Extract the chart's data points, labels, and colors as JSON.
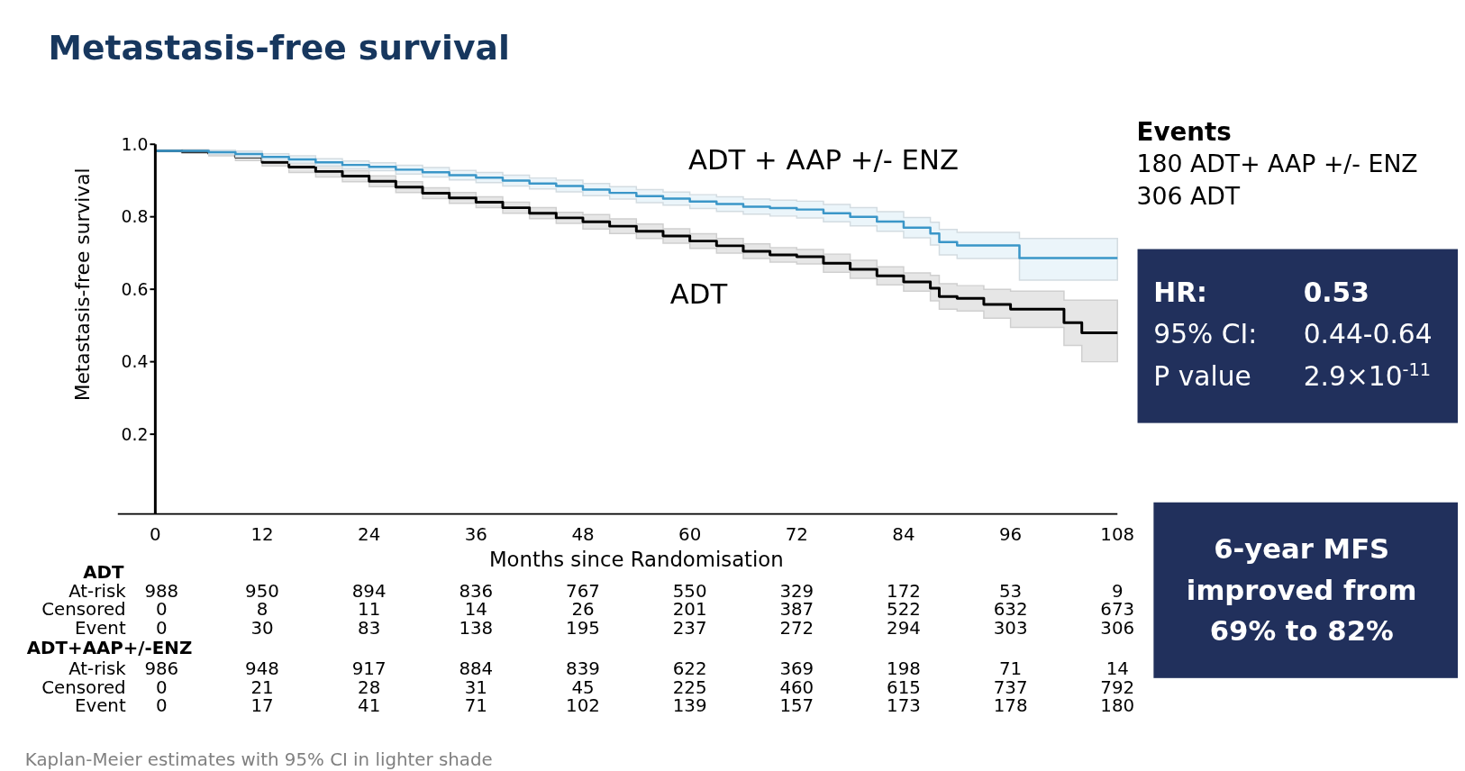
{
  "chart_data": {
    "type": "step",
    "title": "Metastasis-free survival",
    "xlabel": "Months since Randomisation",
    "ylabel": "Metastasis-free survival",
    "xlim": [
      0,
      108
    ],
    "xticks": [
      0,
      12,
      24,
      36,
      48,
      60,
      72,
      84,
      96,
      108
    ],
    "ylim": [
      -0.02,
      1
    ],
    "yticks": [
      0.2,
      0.4,
      0.6,
      0.8,
      {
        "value": 1,
        "label": "1.0"
      }
    ],
    "series": [
      {
        "name": "ADT + AAP +/- ENZ",
        "color": "#3a96c8",
        "x": [
          0,
          6,
          9,
          12,
          15,
          18,
          21,
          24,
          27,
          30,
          33,
          36,
          39,
          42,
          45,
          48,
          51,
          54,
          57,
          60,
          63,
          66,
          69,
          72,
          75,
          78,
          81,
          84,
          87,
          88,
          90,
          97,
          108
        ],
        "values": [
          0.982,
          0.978,
          0.973,
          0.965,
          0.958,
          0.95,
          0.943,
          0.938,
          0.93,
          0.923,
          0.915,
          0.908,
          0.9,
          0.892,
          0.885,
          0.875,
          0.866,
          0.857,
          0.85,
          0.842,
          0.835,
          0.828,
          0.824,
          0.82,
          0.81,
          0.8,
          0.787,
          0.77,
          0.754,
          0.73,
          0.721,
          0.686,
          0.686
        ],
        "lower": [
          0.982,
          0.972,
          0.965,
          0.956,
          0.948,
          0.94,
          0.932,
          0.927,
          0.918,
          0.91,
          0.902,
          0.894,
          0.885,
          0.877,
          0.869,
          0.858,
          0.849,
          0.839,
          0.832,
          0.823,
          0.815,
          0.807,
          0.802,
          0.797,
          0.786,
          0.775,
          0.76,
          0.742,
          0.722,
          0.695,
          0.685,
          0.625,
          0.625
        ],
        "upper": [
          0.982,
          0.984,
          0.981,
          0.974,
          0.968,
          0.96,
          0.954,
          0.949,
          0.942,
          0.936,
          0.928,
          0.922,
          0.915,
          0.907,
          0.901,
          0.892,
          0.883,
          0.875,
          0.868,
          0.861,
          0.855,
          0.849,
          0.846,
          0.843,
          0.834,
          0.825,
          0.814,
          0.798,
          0.785,
          0.765,
          0.757,
          0.74,
          0.74
        ]
      },
      {
        "name": "ADT",
        "color": "#000000",
        "x": [
          0,
          3,
          6,
          9,
          12,
          15,
          18,
          21,
          24,
          27,
          30,
          33,
          36,
          39,
          42,
          45,
          48,
          51,
          54,
          57,
          60,
          63,
          66,
          69,
          72,
          75,
          78,
          81,
          84,
          87,
          88,
          90,
          93,
          96,
          102,
          104,
          108
        ],
        "values": [
          0.982,
          0.98,
          0.975,
          0.965,
          0.95,
          0.937,
          0.925,
          0.912,
          0.898,
          0.882,
          0.865,
          0.852,
          0.84,
          0.825,
          0.81,
          0.797,
          0.786,
          0.774,
          0.76,
          0.747,
          0.733,
          0.72,
          0.705,
          0.695,
          0.69,
          0.672,
          0.655,
          0.637,
          0.62,
          0.603,
          0.58,
          0.575,
          0.558,
          0.545,
          0.508,
          0.48,
          0.48
        ],
        "lower": [
          0.982,
          0.975,
          0.968,
          0.955,
          0.94,
          0.922,
          0.91,
          0.897,
          0.883,
          0.867,
          0.85,
          0.837,
          0.825,
          0.81,
          0.795,
          0.782,
          0.766,
          0.754,
          0.74,
          0.727,
          0.713,
          0.7,
          0.685,
          0.675,
          0.67,
          0.647,
          0.63,
          0.612,
          0.595,
          0.568,
          0.545,
          0.54,
          0.52,
          0.495,
          0.445,
          0.4,
          0.4
        ],
        "upper": [
          0.982,
          0.985,
          0.982,
          0.975,
          0.96,
          0.952,
          0.94,
          0.927,
          0.913,
          0.897,
          0.88,
          0.867,
          0.855,
          0.84,
          0.825,
          0.812,
          0.806,
          0.794,
          0.78,
          0.767,
          0.753,
          0.74,
          0.725,
          0.715,
          0.71,
          0.697,
          0.68,
          0.662,
          0.645,
          0.638,
          0.615,
          0.61,
          0.6,
          0.595,
          0.57,
          0.57,
          0.57
        ]
      }
    ],
    "annotations": [
      "Events",
      "180 ADT+ AAP +/- ENZ",
      "306 ADT",
      "HR:",
      "0.53",
      "95% CI:",
      "0.44-0.64",
      "P value",
      "2.9×10$^{-11}$",
      "6-year MFS improved from 69% to 82%",
      "ADT",
      "At-risk 988 950 894 836 767 550 329 172 53 9",
      "Censored 0 8 11 14 26 201 387 522 632 673",
      "Event 0 30 83 138 195 237 272 294 303 306",
      "ADT+AAP+/-ENZ",
      "At-risk 986 948 917 884 839 622 369 198 71 14",
      "Censored 0 21 28 31 45 225 460 615 737 792",
      "Event 0 17 41 71 102 139 157 173 178 180",
      "Kaplan-Meier estimates with 95% CI in lighter shade"
    ]
  }
}
